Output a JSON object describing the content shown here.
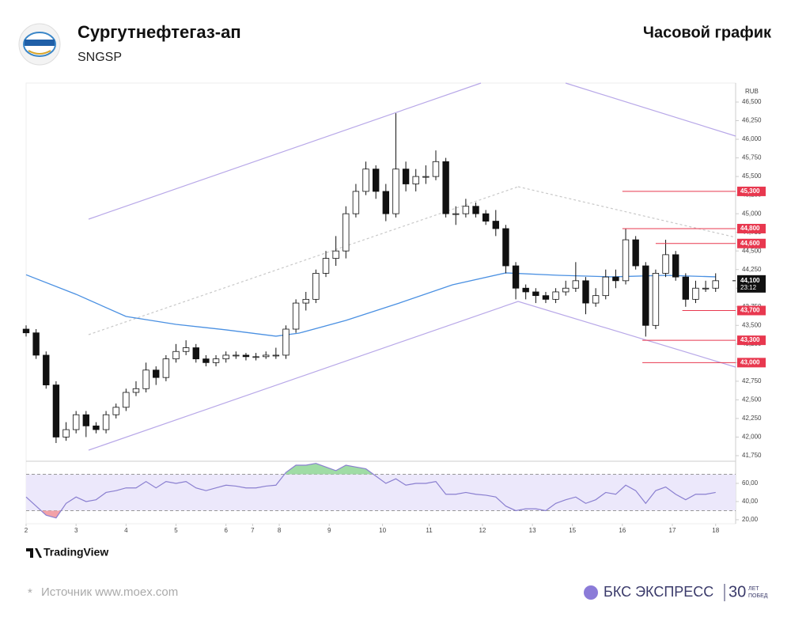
{
  "header": {
    "title": "Сургутнефтегаз-ап",
    "ticker": "SNGSP",
    "chart_kind": "Часовой график"
  },
  "chart_data": {
    "type": "candlestick",
    "currency": "RUB",
    "xlim": [
      0,
      213
    ],
    "xticks": [
      {
        "value": 0,
        "label": "2"
      },
      {
        "value": 15,
        "label": "3"
      },
      {
        "value": 30,
        "label": "4"
      },
      {
        "value": 45,
        "label": "5"
      },
      {
        "value": 60,
        "label": "6"
      },
      {
        "value": 68,
        "label": "7"
      },
      {
        "value": 76,
        "label": "8"
      },
      {
        "value": 91,
        "label": "9"
      },
      {
        "value": 107,
        "label": "10"
      },
      {
        "value": 121,
        "label": "11"
      },
      {
        "value": 137,
        "label": "12"
      },
      {
        "value": 152,
        "label": "13"
      },
      {
        "value": 164,
        "label": "15"
      },
      {
        "value": 179,
        "label": "16"
      },
      {
        "value": 194,
        "label": "17"
      },
      {
        "value": 207,
        "label": "18"
      }
    ],
    "ylim": [
      41686,
      46755
    ],
    "yticks": [
      {
        "value": 41750,
        "label": "41,750"
      },
      {
        "value": 42000,
        "label": "42,000"
      },
      {
        "value": 42250,
        "label": "42,250"
      },
      {
        "value": 42500,
        "label": "42,500"
      },
      {
        "value": 42750,
        "label": "42,750"
      },
      {
        "value": 43000,
        "label": "43,000"
      },
      {
        "value": 43250,
        "label": "43,250"
      },
      {
        "value": 43500,
        "label": "43,500"
      },
      {
        "value": 43750,
        "label": "43,750"
      },
      {
        "value": 44000,
        "label": "44,000"
      },
      {
        "value": 44250,
        "label": "44,250"
      },
      {
        "value": 44500,
        "label": "44,500"
      },
      {
        "value": 44750,
        "label": "44,750"
      },
      {
        "value": 45000,
        "label": "45,000"
      },
      {
        "value": 45250,
        "label": "45,250"
      },
      {
        "value": 45500,
        "label": "45,500"
      },
      {
        "value": 45750,
        "label": "45,750"
      },
      {
        "value": 46000,
        "label": "46,000"
      },
      {
        "value": 46250,
        "label": "46,250"
      },
      {
        "value": 46500,
        "label": "46,500"
      }
    ],
    "x": [
      0,
      3,
      6,
      9,
      12,
      15,
      18,
      21,
      24,
      27,
      30,
      33,
      36,
      39,
      42,
      45,
      48,
      51,
      54,
      57,
      60,
      63,
      66,
      69,
      72,
      75,
      78,
      81,
      84,
      87,
      90,
      93,
      96,
      99,
      102,
      105,
      108,
      111,
      114,
      117,
      120,
      123,
      126,
      129,
      132,
      135,
      138,
      141,
      144,
      147,
      150,
      153,
      156,
      159,
      162,
      165,
      168,
      171,
      174,
      177,
      180,
      183,
      186,
      189,
      192,
      195,
      198,
      201,
      204,
      207
    ],
    "open": [
      43450,
      43400,
      43100,
      42700,
      42000,
      42100,
      42300,
      42150,
      42100,
      42300,
      42400,
      42600,
      42650,
      42900,
      42800,
      43050,
      43150,
      43200,
      43050,
      43000,
      43050,
      43100,
      43100,
      43080,
      43080,
      43100,
      43100,
      43450,
      43800,
      43850,
      44200,
      44400,
      44500,
      45000,
      45300,
      45600,
      45300,
      45000,
      45600,
      45400,
      45500,
      45500,
      45700,
      45000,
      45000,
      45100,
      45000,
      44900,
      44800,
      44300,
      44000,
      43950,
      43900,
      43850,
      43950,
      44000,
      44100,
      43800,
      43900,
      44150,
      44100,
      44650,
      44300,
      43500,
      44200,
      44450,
      44150,
      43850,
      44000,
      44000
    ],
    "high": [
      43500,
      43450,
      43150,
      42750,
      42200,
      42350,
      42350,
      42200,
      42350,
      42450,
      42650,
      42750,
      43000,
      42950,
      43100,
      43250,
      43300,
      43250,
      43100,
      43100,
      43150,
      43150,
      43130,
      43130,
      43150,
      43200,
      43500,
      43850,
      43950,
      44250,
      44500,
      44700,
      45100,
      45400,
      45700,
      45650,
      45400,
      46350,
      45700,
      45600,
      45650,
      45850,
      45750,
      45100,
      45200,
      45150,
      45050,
      45050,
      44850,
      44350,
      44050,
      44000,
      43950,
      44000,
      44100,
      44350,
      44150,
      44000,
      44250,
      44250,
      44800,
      44700,
      44350,
      44250,
      44650,
      44500,
      44200,
      44100,
      44100,
      44200
    ],
    "low": [
      43350,
      43050,
      42650,
      41920,
      41950,
      42050,
      42000,
      42050,
      42050,
      42250,
      42350,
      42550,
      42600,
      42700,
      42750,
      43000,
      43100,
      43000,
      42950,
      42950,
      43000,
      43050,
      43030,
      43030,
      43050,
      43050,
      43050,
      43400,
      43700,
      43800,
      44150,
      44300,
      44400,
      44950,
      45250,
      45200,
      44900,
      44950,
      45300,
      45300,
      45400,
      45450,
      44950,
      44850,
      44950,
      44950,
      44850,
      44700,
      44200,
      43850,
      43850,
      43800,
      43800,
      43800,
      43900,
      43950,
      43650,
      43750,
      43850,
      44000,
      44050,
      44250,
      43350,
      43450,
      44150,
      44100,
      43750,
      43800,
      43950,
      43950
    ],
    "close": [
      43400,
      43100,
      42700,
      42000,
      42100,
      42300,
      42150,
      42100,
      42300,
      42400,
      42600,
      42650,
      42900,
      42800,
      43050,
      43150,
      43200,
      43050,
      43000,
      43050,
      43100,
      43100,
      43080,
      43080,
      43100,
      43100,
      43450,
      43800,
      43850,
      44200,
      44400,
      44500,
      45000,
      45300,
      45600,
      45300,
      45000,
      45600,
      45400,
      45500,
      45500,
      45700,
      45000,
      45000,
      45100,
      45000,
      44900,
      44800,
      44300,
      44000,
      43950,
      43900,
      43850,
      43950,
      44000,
      44100,
      43800,
      43900,
      44150,
      44100,
      44650,
      44300,
      43500,
      44200,
      44450,
      44150,
      43850,
      44000,
      44000,
      44100
    ],
    "ma": {
      "color": "#4a90e2",
      "x": [
        0,
        15,
        30,
        45,
        60,
        75,
        82,
        96,
        112,
        128,
        144,
        160,
        176,
        192,
        207
      ],
      "values": [
        44180,
        43918,
        43620,
        43514,
        43440,
        43355,
        43397,
        43567,
        43800,
        44045,
        44205,
        44173,
        44152,
        44173,
        44152
      ]
    },
    "levels": [
      {
        "value": 45300,
        "label": "45,300",
        "from": 179
      },
      {
        "value": 44800,
        "label": "44,800",
        "from": 179
      },
      {
        "value": 44600,
        "label": "44,600",
        "from": 189
      },
      {
        "value": 43700,
        "label": "43,700",
        "from": 197
      },
      {
        "value": 43300,
        "label": "43,300",
        "from": 185
      },
      {
        "value": 43000,
        "label": "43,000",
        "from": 185
      }
    ],
    "last_price": {
      "value": 44100,
      "label": "44,100"
    },
    "countdown": "23:12",
    "rsi": {
      "color": "#8a7fd0",
      "values": [
        45,
        35,
        25,
        22,
        38,
        45,
        40,
        42,
        50,
        52,
        55,
        55,
        62,
        55,
        62,
        60,
        62,
        55,
        52,
        55,
        58,
        57,
        55,
        55,
        57,
        58,
        72,
        80,
        80,
        82,
        78,
        74,
        80,
        78,
        76,
        68,
        60,
        65,
        58,
        60,
        60,
        62,
        48,
        48,
        50,
        48,
        47,
        45,
        35,
        30,
        32,
        32,
        30,
        38,
        42,
        45,
        38,
        42,
        50,
        48,
        58,
        52,
        38,
        52,
        56,
        48,
        42,
        48,
        48,
        50
      ],
      "ylim": [
        15.6,
        82.6
      ],
      "yticks": [
        {
          "value": 20,
          "label": "20,00"
        },
        {
          "value": 40,
          "label": "40,00"
        },
        {
          "value": 60,
          "label": "60,00"
        }
      ],
      "bands": [
        30,
        70
      ]
    }
  },
  "footer": {
    "provider": "TradingView",
    "source": "Источник www.moex.com",
    "brand": "БКС ЭКСПРЕСС",
    "anniversary": "30",
    "anniversary_sub": [
      "ЛЕТ",
      "ПОБЕД"
    ]
  }
}
